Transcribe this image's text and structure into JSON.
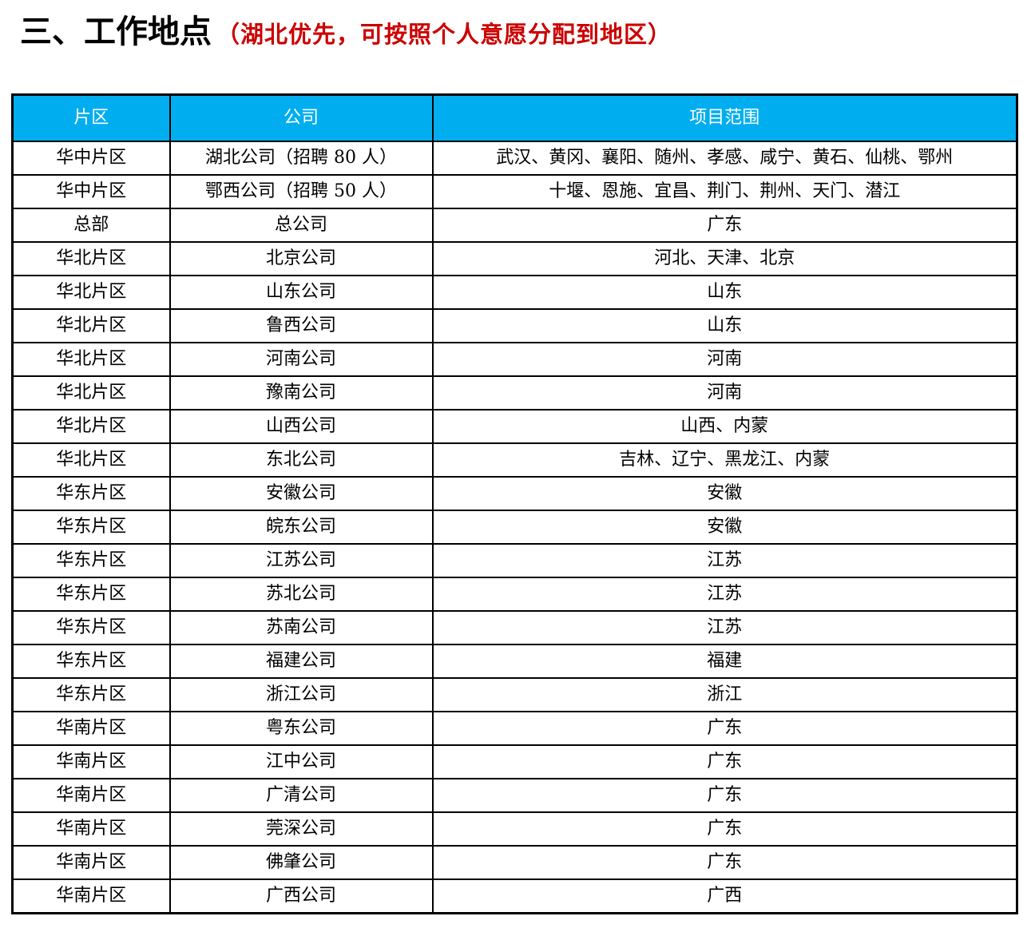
{
  "title": {
    "main": "三、工作地点",
    "note": "（湖北优先，可按照个人意愿分配到地区）"
  },
  "colors": {
    "header_bg": "#00AEEF",
    "header_text": "#FFFFFF",
    "note_red": "#CC0000",
    "border": "#000000"
  },
  "table": {
    "headers": [
      "片区",
      "公司",
      "项目范围"
    ],
    "rows": [
      {
        "region": "华中片区",
        "company": "湖北公司（招聘 80 人）",
        "scope": "武汉、黄冈、襄阳、随州、孝感、咸宁、黄石、仙桃、鄂州"
      },
      {
        "region": "华中片区",
        "company": "鄂西公司（招聘 50 人）",
        "scope": "十堰、恩施、宜昌、荆门、荆州、天门、潜江"
      },
      {
        "region": "总部",
        "company": "总公司",
        "scope": "广东"
      },
      {
        "region": "华北片区",
        "company": "北京公司",
        "scope": "河北、天津、北京"
      },
      {
        "region": "华北片区",
        "company": "山东公司",
        "scope": "山东"
      },
      {
        "region": "华北片区",
        "company": "鲁西公司",
        "scope": "山东"
      },
      {
        "region": "华北片区",
        "company": "河南公司",
        "scope": "河南"
      },
      {
        "region": "华北片区",
        "company": "豫南公司",
        "scope": "河南"
      },
      {
        "region": "华北片区",
        "company": "山西公司",
        "scope": "山西、内蒙"
      },
      {
        "region": "华北片区",
        "company": "东北公司",
        "scope": "吉林、辽宁、黑龙江、内蒙"
      },
      {
        "region": "华东片区",
        "company": "安徽公司",
        "scope": "安徽"
      },
      {
        "region": "华东片区",
        "company": "皖东公司",
        "scope": "安徽"
      },
      {
        "region": "华东片区",
        "company": "江苏公司",
        "scope": "江苏"
      },
      {
        "region": "华东片区",
        "company": "苏北公司",
        "scope": "江苏"
      },
      {
        "region": "华东片区",
        "company": "苏南公司",
        "scope": "江苏"
      },
      {
        "region": "华东片区",
        "company": "福建公司",
        "scope": "福建"
      },
      {
        "region": "华东片区",
        "company": "浙江公司",
        "scope": "浙江"
      },
      {
        "region": "华南片区",
        "company": "粤东公司",
        "scope": "广东"
      },
      {
        "region": "华南片区",
        "company": "江中公司",
        "scope": "广东"
      },
      {
        "region": "华南片区",
        "company": "广清公司",
        "scope": "广东"
      },
      {
        "region": "华南片区",
        "company": "莞深公司",
        "scope": "广东"
      },
      {
        "region": "华南片区",
        "company": "佛肇公司",
        "scope": "广东"
      },
      {
        "region": "华南片区",
        "company": "广西公司",
        "scope": "广西"
      }
    ]
  }
}
